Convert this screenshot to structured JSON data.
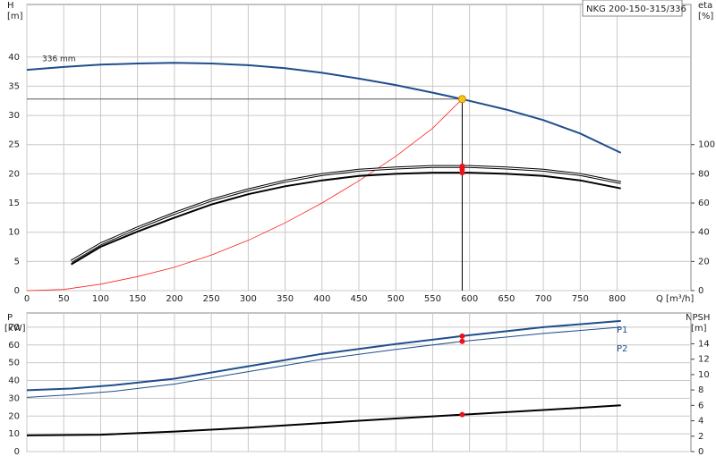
{
  "chart_data": [
    {
      "type": "line",
      "title": "NKG 200-150-315/336",
      "ylabel": "H",
      "yunit": "[m]",
      "y2label": "eta",
      "y2unit": "[%]",
      "xlabel": "Q [m³/h]",
      "xlim": [
        0,
        900
      ],
      "xticks": [
        0,
        50,
        100,
        150,
        200,
        250,
        300,
        350,
        400,
        450,
        500,
        550,
        600,
        650,
        700,
        750,
        800
      ],
      "ylim": [
        0,
        49
      ],
      "yticks": [
        0,
        5,
        10,
        15,
        20,
        25,
        30,
        35,
        40
      ],
      "y2lim": [
        0,
        196
      ],
      "y2ticks": [
        0,
        20,
        40,
        60,
        80,
        100
      ],
      "grid": true,
      "series": [
        {
          "name": "336 mm",
          "color": "#1f4e8c",
          "axis": "y",
          "x": [
            0,
            50,
            100,
            150,
            200,
            250,
            300,
            350,
            400,
            450,
            500,
            550,
            590,
            650,
            700,
            750,
            805
          ],
          "values": [
            37.8,
            38.3,
            38.7,
            38.9,
            39.0,
            38.9,
            38.6,
            38.1,
            37.3,
            36.3,
            35.2,
            33.9,
            32.8,
            31.0,
            29.2,
            26.9,
            23.6
          ]
        },
        {
          "color": "#ff2020",
          "axis": "y",
          "x": [
            0,
            50,
            100,
            150,
            200,
            250,
            300,
            350,
            400,
            450,
            500,
            550,
            590
          ],
          "values": [
            0,
            0.2,
            1.1,
            2.4,
            4.0,
            6.1,
            8.6,
            11.6,
            15.0,
            18.8,
            23.0,
            27.8,
            32.8
          ]
        },
        {
          "color": "#000000",
          "axis": "y2",
          "style": "double",
          "x": [
            60,
            100,
            150,
            200,
            250,
            300,
            350,
            400,
            450,
            500,
            550,
            600,
            650,
            700,
            750,
            805
          ],
          "values": [
            20,
            32,
            43,
            53,
            62,
            69,
            75,
            79.5,
            82.5,
            84,
            85,
            85,
            84,
            82.5,
            79.5,
            74
          ]
        },
        {
          "color": "#000000",
          "axis": "y2",
          "x": [
            60,
            100,
            150,
            200,
            250,
            300,
            350,
            400,
            450,
            500,
            550,
            600,
            650,
            700,
            750,
            805
          ],
          "values": [
            18,
            30,
            40.5,
            50,
            59,
            66,
            71.5,
            75.5,
            78.5,
            80,
            80.8,
            80.8,
            80,
            78.5,
            75.5,
            70
          ]
        }
      ],
      "duty_point": {
        "x": 590,
        "y": 32.8,
        "color": "#f5c518"
      },
      "markers": {
        "color": "#e8141b",
        "x": 590,
        "values": [
          85.2,
          83,
          80.8
        ],
        "axis": "y2"
      }
    },
    {
      "type": "line",
      "ylabel": "P",
      "yunit": "[kW]",
      "y2label": "NPSH",
      "y2unit": "[m]",
      "ylim": [
        0,
        78
      ],
      "yticks": [
        0,
        10,
        20,
        30,
        40,
        50,
        60,
        70
      ],
      "y2lim": [
        0,
        18
      ],
      "y2ticks": [
        0,
        2,
        4,
        6,
        8,
        10,
        12,
        14
      ],
      "grid": true,
      "series": [
        {
          "name": "P1",
          "color": "#1f4e8c",
          "axis": "y",
          "width": 2,
          "x": [
            0,
            60,
            120,
            200,
            300,
            400,
            500,
            590,
            700,
            805
          ],
          "values": [
            34.5,
            35.5,
            37.5,
            41,
            48,
            55,
            60.5,
            65,
            70,
            73.5
          ]
        },
        {
          "name": "P2",
          "color": "#1f4e8c",
          "axis": "y",
          "width": 1,
          "x": [
            0,
            60,
            120,
            200,
            300,
            400,
            500,
            590,
            700,
            805
          ],
          "values": [
            30.5,
            32,
            34,
            38,
            45,
            52,
            57.5,
            62,
            66.5,
            70
          ]
        },
        {
          "color": "#000000",
          "axis": "y2",
          "width": 2,
          "x": [
            0,
            100,
            200,
            300,
            400,
            500,
            590,
            700,
            805
          ],
          "values": [
            2.1,
            2.2,
            2.6,
            3.1,
            3.7,
            4.3,
            4.8,
            5.4,
            6.0
          ]
        }
      ],
      "markers": {
        "color": "#e8141b",
        "x": 590,
        "values": [
          65,
          62
        ],
        "axis": "y",
        "extra": {
          "value": 4.8,
          "axis": "y2"
        }
      }
    }
  ]
}
